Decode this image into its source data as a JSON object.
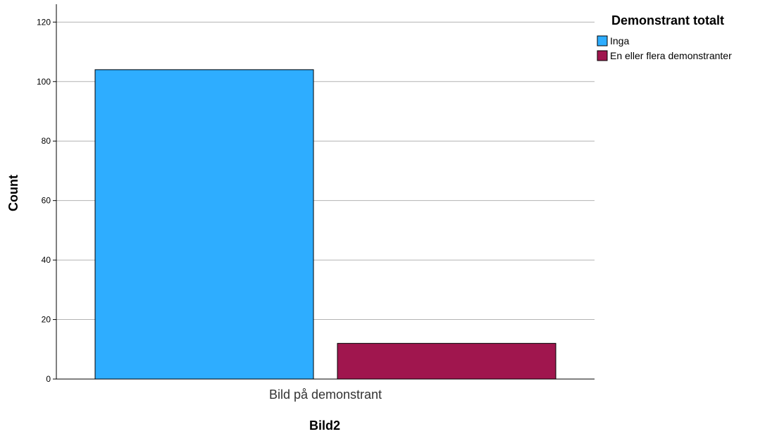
{
  "chart_data": {
    "type": "bar",
    "categories": [
      "Bild på demonstrant"
    ],
    "series": [
      {
        "name": "Inga",
        "values": [
          104
        ],
        "color": "#2eadff"
      },
      {
        "name": "En eller flera demonstranter",
        "values": [
          12
        ],
        "color": "#a0164e"
      }
    ],
    "xlabel": "Bild2",
    "ylabel": "Count",
    "ylim": [
      0,
      126
    ],
    "yticks": [
      0,
      20,
      40,
      60,
      80,
      100,
      120
    ],
    "grid": true,
    "legend": {
      "title": "Demonstrant totalt",
      "position": "right"
    }
  }
}
